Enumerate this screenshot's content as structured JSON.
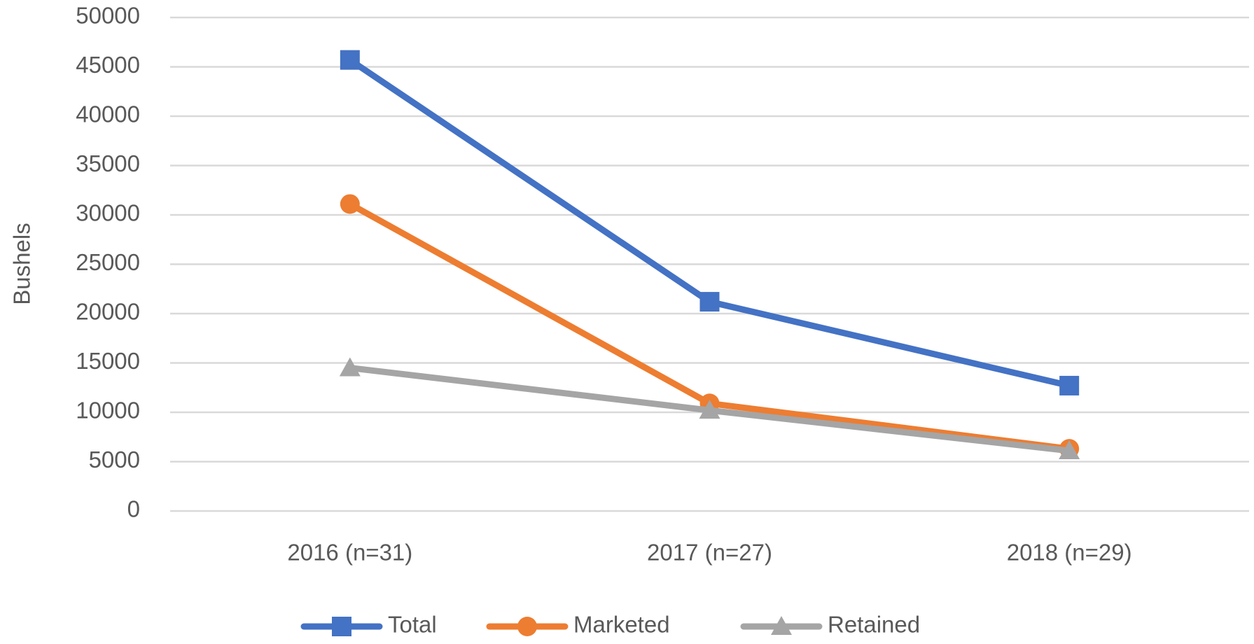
{
  "chart_data": {
    "type": "line",
    "y_label": "Bushels",
    "categories": [
      "2016 (n=31)",
      "2017 (n=27)",
      "2018 (n=29)"
    ],
    "series": [
      {
        "name": "Total",
        "color": "#4472c4",
        "marker": "square",
        "values": [
          45700,
          21200,
          12700
        ]
      },
      {
        "name": "Marketed",
        "color": "#ed7d31",
        "marker": "circle",
        "values": [
          31100,
          10900,
          6300
        ]
      },
      {
        "name": "Retained",
        "color": "#a5a5a5",
        "marker": "triangle",
        "values": [
          14500,
          10200,
          6100
        ]
      }
    ],
    "ylim": [
      0,
      50000
    ],
    "yticks": [
      0,
      5000,
      10000,
      15000,
      20000,
      25000,
      30000,
      35000,
      40000,
      45000,
      50000
    ],
    "grid": true,
    "legend": "bottom"
  }
}
